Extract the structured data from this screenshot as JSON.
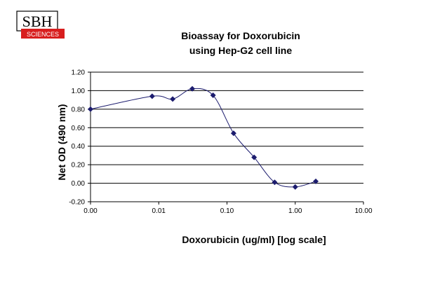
{
  "logo": {
    "line1": "SBH",
    "line2": "SCIENCES"
  },
  "colors": {
    "series": "#1c1c6e",
    "grid": "#000000",
    "logo_red": "#d81e1e"
  },
  "chart_data": {
    "type": "scatter",
    "title_lines": [
      "Bioassay for Doxorubicin",
      "using Hep-G2 cell line"
    ],
    "xlabel": "Doxorubicin  (ug/ml) [log scale]",
    "ylabel": "Net OD (490 nm)",
    "x_scale": "log",
    "xlim": [
      0.001,
      10
    ],
    "ylim": [
      -0.2,
      1.2
    ],
    "x_ticks": [
      0.001,
      0.01,
      0.1,
      1,
      10
    ],
    "x_tick_labels": [
      "0.00",
      "0.01",
      "0.10",
      "1.00",
      "10.00"
    ],
    "y_ticks": [
      -0.2,
      0,
      0.2,
      0.4,
      0.6,
      0.8,
      1.0,
      1.2
    ],
    "y_tick_labels": [
      "-0.20",
      "0.00",
      "0.20",
      "0.40",
      "0.60",
      "0.80",
      "1.00",
      "1.20"
    ],
    "grid": "horizontal",
    "marker": "diamond",
    "line": "smoothed",
    "x": [
      0.001,
      0.008,
      0.016,
      0.031,
      0.0625,
      0.125,
      0.25,
      0.5,
      1.0,
      2.0
    ],
    "y": [
      0.8,
      0.94,
      0.91,
      1.02,
      0.95,
      0.54,
      0.28,
      0.01,
      -0.04,
      0.02
    ]
  }
}
